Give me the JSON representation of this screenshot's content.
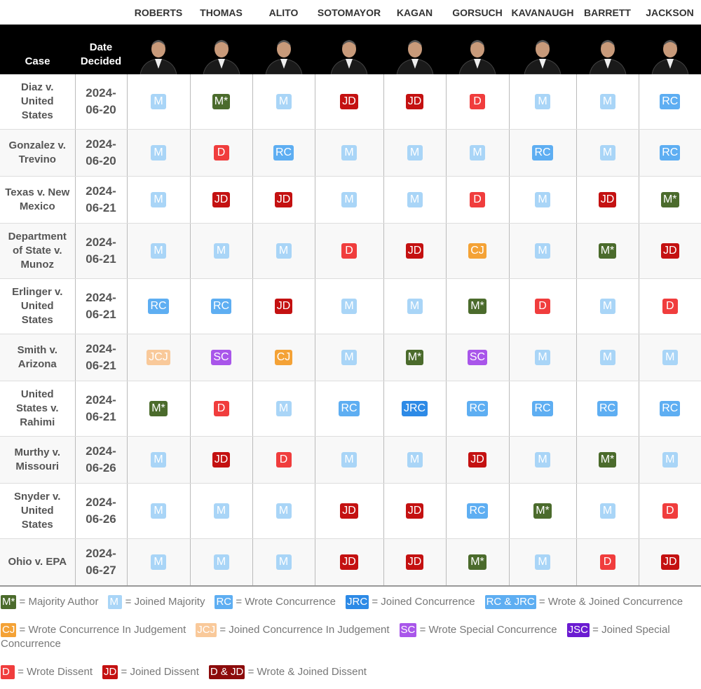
{
  "columns": {
    "case": "Case",
    "date": "Date Decided",
    "justices": [
      "ROBERTS",
      "THOMAS",
      "ALITO",
      "SOTOMAYOR",
      "KAGAN",
      "GORSUCH",
      "KAVANAUGH",
      "BARRETT",
      "JACKSON"
    ]
  },
  "rows": [
    {
      "case": "Diaz v. United States",
      "date": "2024-06-20",
      "votes": [
        "M",
        "M*",
        "M",
        "JD",
        "JD",
        "D",
        "M",
        "M",
        "RC"
      ]
    },
    {
      "case": "Gonzalez v. Trevino",
      "date": "2024-06-20",
      "votes": [
        "M",
        "D",
        "RC",
        "M",
        "M",
        "M",
        "RC",
        "M",
        "RC"
      ]
    },
    {
      "case": "Texas v. New Mexico",
      "date": "2024-06-21",
      "votes": [
        "M",
        "JD",
        "JD",
        "M",
        "M",
        "D",
        "M",
        "JD",
        "M*"
      ]
    },
    {
      "case": "Department of State v. Munoz",
      "date": "2024-06-21",
      "votes": [
        "M",
        "M",
        "M",
        "D",
        "JD",
        "CJ",
        "M",
        "M*",
        "JD"
      ]
    },
    {
      "case": "Erlinger v. United States",
      "date": "2024-06-21",
      "votes": [
        "RC",
        "RC",
        "JD",
        "M",
        "M",
        "M*",
        "D",
        "M",
        "D"
      ]
    },
    {
      "case": "Smith v. Arizona",
      "date": "2024-06-21",
      "votes": [
        "JCJ",
        "SC",
        "CJ",
        "M",
        "M*",
        "SC",
        "M",
        "M",
        "M"
      ]
    },
    {
      "case": "United States v. Rahimi",
      "date": "2024-06-21",
      "votes": [
        "M*",
        "D",
        "M",
        "RC",
        "JRC",
        "RC",
        "RC",
        "RC",
        "RC"
      ]
    },
    {
      "case": "Murthy v. Missouri",
      "date": "2024-06-26",
      "votes": [
        "M",
        "JD",
        "D",
        "M",
        "M",
        "JD",
        "M",
        "M*",
        "M"
      ]
    },
    {
      "case": "Snyder v. United States",
      "date": "2024-06-26",
      "votes": [
        "M",
        "M",
        "M",
        "JD",
        "JD",
        "RC",
        "M*",
        "M",
        "D"
      ]
    },
    {
      "case": "Ohio v. EPA",
      "date": "2024-06-27",
      "votes": [
        "M",
        "M",
        "M",
        "JD",
        "JD",
        "M*",
        "M",
        "D",
        "JD"
      ]
    }
  ],
  "legend": [
    [
      {
        "code": "M*",
        "label": "= Majority Author",
        "color": "#4b6b2c"
      },
      {
        "code": "M",
        "label": "= Joined Majority",
        "color": "#a9d5f7"
      },
      {
        "code": "RC",
        "label": "= Wrote Concurrence",
        "color": "#5eaef2"
      },
      {
        "code": "JRC",
        "label": "= Joined Concurrence",
        "color": "#2d8ae6"
      },
      {
        "code": "RC & JRC",
        "label": "= Wrote & Joined Concurrence",
        "color": "#5eaef2"
      }
    ],
    [
      {
        "code": "CJ",
        "label": "= Wrote Concurrence In Judgement",
        "color": "#f4a236"
      },
      {
        "code": "JCJ",
        "label": "= Joined Concurrence In Judgement",
        "color": "#f9c99a"
      },
      {
        "code": "SC",
        "label": "= Wrote Special Concurrence",
        "color": "#a956ea"
      },
      {
        "code": "JSC",
        "label": "= Joined Special Concurrence",
        "color": "#6b1bd1"
      }
    ],
    [
      {
        "code": "D",
        "label": "= Wrote Dissent",
        "color": "#f03d3d"
      },
      {
        "code": "JD",
        "label": "= Joined Dissent",
        "color": "#c41111"
      },
      {
        "code": "D & JD",
        "label": "= Wrote & Joined Dissent",
        "color": "#8c0b0b"
      }
    ]
  ]
}
